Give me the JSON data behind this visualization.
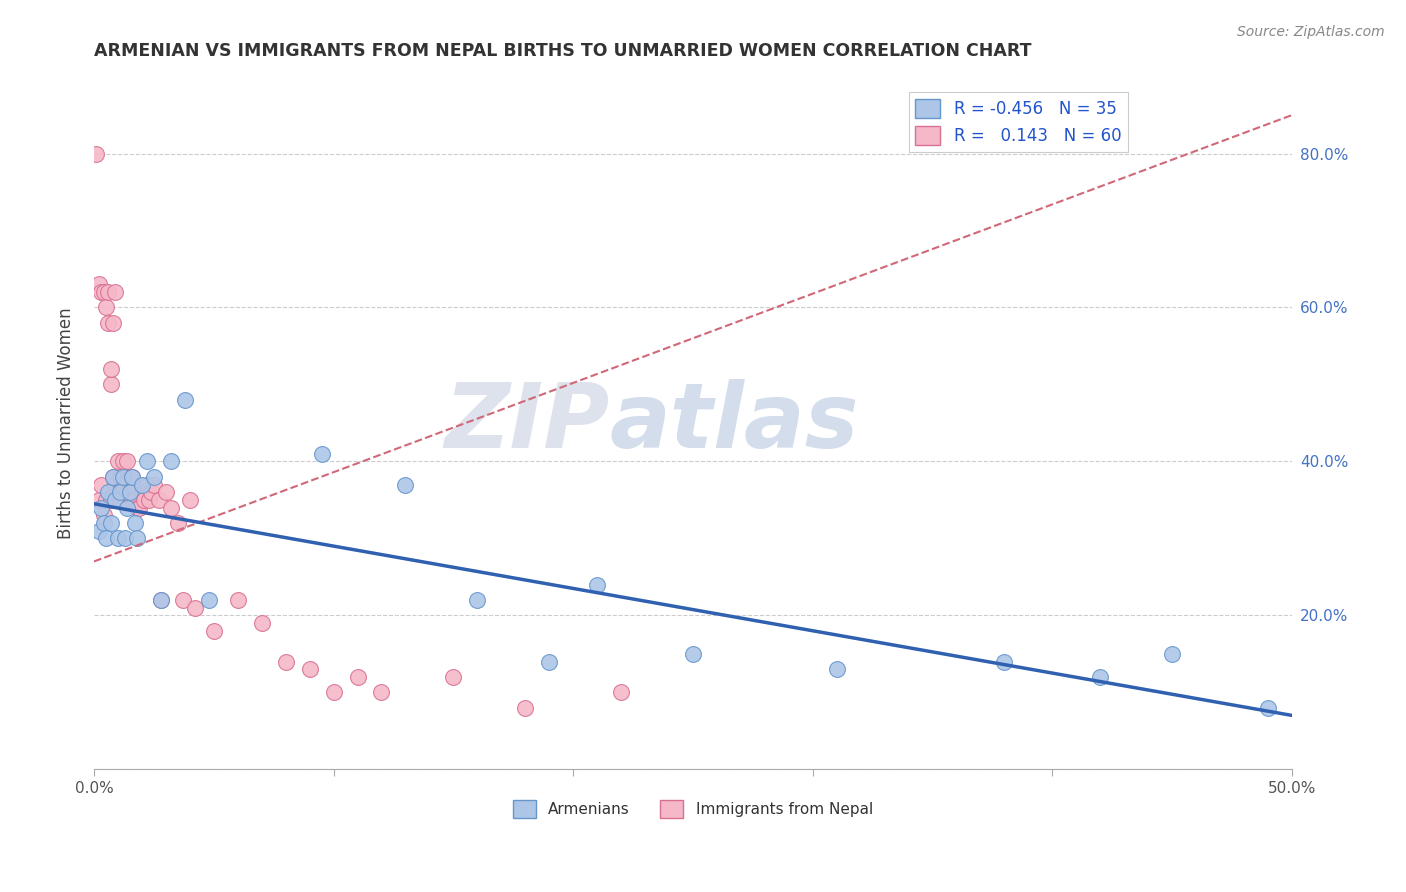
{
  "title": "ARMENIAN VS IMMIGRANTS FROM NEPAL BIRTHS TO UNMARRIED WOMEN CORRELATION CHART",
  "source": "Source: ZipAtlas.com",
  "ylabel": "Births to Unmarried Women",
  "xlim": [
    0.0,
    0.5
  ],
  "ylim": [
    0.0,
    0.9
  ],
  "armenian_r": -0.456,
  "armenian_n": 35,
  "nepal_r": 0.143,
  "nepal_n": 60,
  "armenian_color": "#adc6e8",
  "armenian_edge_color": "#6496cc",
  "nepal_color": "#f5b8c8",
  "nepal_edge_color": "#d87090",
  "armenian_line_color": "#3060b0",
  "nepal_line_color": "#d06878",
  "watermark_color": "#ccd4e4",
  "title_color": "#333333",
  "legend_text_color": "#2255cc",
  "right_tick_color": "#4472c4",
  "armenian_scatter_x": [
    0.002,
    0.003,
    0.004,
    0.005,
    0.006,
    0.007,
    0.008,
    0.009,
    0.01,
    0.011,
    0.012,
    0.013,
    0.014,
    0.015,
    0.016,
    0.017,
    0.018,
    0.02,
    0.022,
    0.025,
    0.028,
    0.032,
    0.038,
    0.048,
    0.095,
    0.13,
    0.16,
    0.19,
    0.21,
    0.25,
    0.31,
    0.38,
    0.42,
    0.45,
    0.49
  ],
  "armenian_scatter_y": [
    0.31,
    0.34,
    0.32,
    0.3,
    0.36,
    0.32,
    0.38,
    0.35,
    0.3,
    0.36,
    0.38,
    0.3,
    0.34,
    0.36,
    0.38,
    0.32,
    0.3,
    0.37,
    0.4,
    0.38,
    0.22,
    0.4,
    0.48,
    0.22,
    0.41,
    0.37,
    0.22,
    0.14,
    0.24,
    0.15,
    0.13,
    0.14,
    0.12,
    0.15,
    0.08
  ],
  "nepal_scatter_x": [
    0.001,
    0.002,
    0.002,
    0.003,
    0.003,
    0.004,
    0.004,
    0.005,
    0.005,
    0.006,
    0.006,
    0.007,
    0.007,
    0.007,
    0.008,
    0.008,
    0.009,
    0.009,
    0.01,
    0.01,
    0.011,
    0.011,
    0.012,
    0.012,
    0.013,
    0.013,
    0.014,
    0.014,
    0.015,
    0.015,
    0.016,
    0.016,
    0.017,
    0.018,
    0.019,
    0.02,
    0.021,
    0.022,
    0.023,
    0.024,
    0.025,
    0.027,
    0.028,
    0.03,
    0.032,
    0.035,
    0.037,
    0.04,
    0.042,
    0.05,
    0.06,
    0.07,
    0.08,
    0.09,
    0.1,
    0.11,
    0.12,
    0.15,
    0.18,
    0.22
  ],
  "nepal_scatter_y": [
    0.8,
    0.35,
    0.63,
    0.37,
    0.62,
    0.33,
    0.62,
    0.35,
    0.6,
    0.62,
    0.58,
    0.5,
    0.52,
    0.35,
    0.58,
    0.38,
    0.37,
    0.62,
    0.36,
    0.4,
    0.38,
    0.35,
    0.37,
    0.4,
    0.35,
    0.38,
    0.36,
    0.4,
    0.36,
    0.38,
    0.38,
    0.35,
    0.35,
    0.34,
    0.34,
    0.36,
    0.35,
    0.37,
    0.35,
    0.36,
    0.37,
    0.35,
    0.22,
    0.36,
    0.34,
    0.32,
    0.22,
    0.35,
    0.21,
    0.18,
    0.22,
    0.19,
    0.14,
    0.13,
    0.1,
    0.12,
    0.1,
    0.12,
    0.08,
    0.1
  ],
  "nepal_trend_x": [
    0.0,
    0.5
  ],
  "nepal_trend_y": [
    0.27,
    0.85
  ],
  "armenian_trend_x": [
    0.0,
    0.5
  ],
  "armenian_trend_y": [
    0.345,
    0.07
  ]
}
